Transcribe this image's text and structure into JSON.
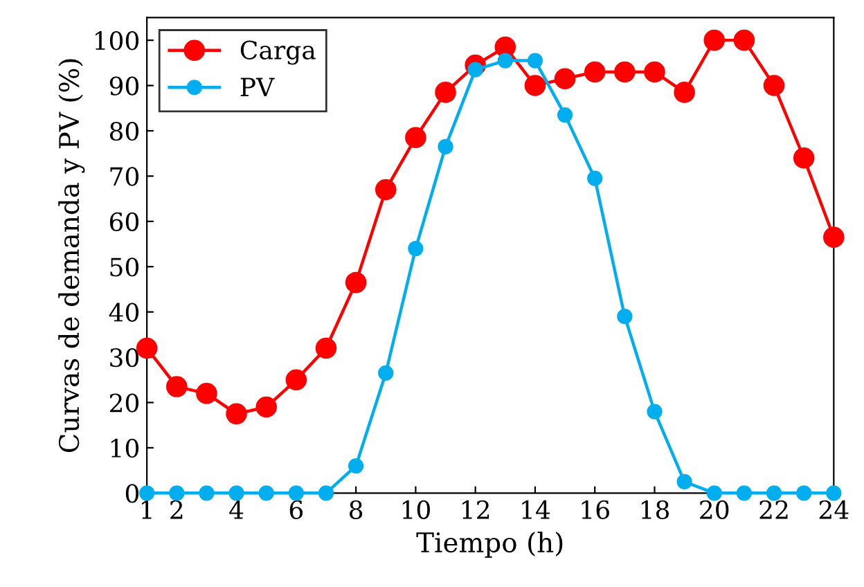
{
  "chart_data": {
    "type": "line",
    "xlabel": "Tiempo (h)",
    "ylabel": "Curvas de demanda y PV (%)",
    "x": [
      1,
      2,
      3,
      4,
      5,
      6,
      7,
      8,
      9,
      10,
      11,
      12,
      13,
      14,
      15,
      16,
      17,
      18,
      19,
      20,
      21,
      22,
      23,
      24
    ],
    "series": [
      {
        "name": "Carga",
        "color": "#ff0000",
        "values": [
          32,
          23.5,
          22,
          17.5,
          19,
          25,
          32,
          46.5,
          67,
          78.5,
          88.5,
          94.5,
          98.5,
          90,
          91.5,
          93,
          93,
          93,
          88.5,
          100,
          100,
          90,
          74,
          56.5
        ]
      },
      {
        "name": "PV",
        "color": "#00aeef",
        "values": [
          0,
          0,
          0,
          0,
          0,
          0,
          0,
          6,
          26.5,
          54,
          76.5,
          93.5,
          95.5,
          95.5,
          83.5,
          69.5,
          39,
          18,
          2.5,
          0,
          0,
          0,
          0,
          0
        ]
      }
    ],
    "xlim": [
      1,
      24
    ],
    "xticks": [
      1,
      2,
      4,
      6,
      8,
      10,
      12,
      14,
      16,
      18,
      20,
      22,
      24
    ],
    "ylim": [
      0,
      105
    ],
    "yticks": [
      0,
      10,
      20,
      30,
      40,
      50,
      60,
      70,
      80,
      90,
      100
    ],
    "grid": false,
    "legend": "top left",
    "marker": "circle",
    "line_style": "solid"
  }
}
